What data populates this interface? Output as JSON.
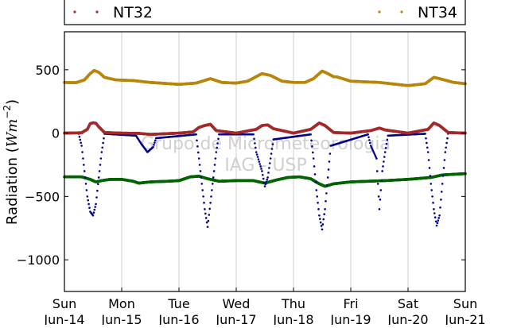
{
  "chart_data": {
    "type": "scatter",
    "title": "",
    "xlabel": "",
    "ylabel_text": "Radiation (",
    "ylabel_unit_base": "Wm",
    "ylabel_unit_exp": "−2",
    "ylabel_close": ")",
    "watermark_line1": "Grupo de Micrometeorologia",
    "watermark_line2": "IAG - USP",
    "legend_placement": "top",
    "grid": "vertical",
    "xlim": [
      0,
      7
    ],
    "ylim": [
      -1250,
      800
    ],
    "yticks": [
      500,
      0,
      -500,
      -1000
    ],
    "ytick_labels": [
      "500",
      "0",
      "−500",
      "−1000"
    ],
    "x_ticks": [
      {
        "day": "Sun",
        "date": "Jun-14"
      },
      {
        "day": "Mon",
        "date": "Jun-15"
      },
      {
        "day": "Tue",
        "date": "Jun-16"
      },
      {
        "day": "Wed",
        "date": "Jun-17"
      },
      {
        "day": "Thu",
        "date": "Jun-18"
      },
      {
        "day": "Fri",
        "date": "Jun-19"
      },
      {
        "day": "Sat",
        "date": "Jun-20"
      },
      {
        "day": "Sun",
        "date": "Jun-21"
      }
    ],
    "series": [
      {
        "name": "NT32",
        "color": "#a52a2a",
        "values": [
          [
            0.0,
            0
          ],
          [
            0.3,
            3
          ],
          [
            0.4,
            30
          ],
          [
            0.45,
            75
          ],
          [
            0.5,
            82
          ],
          [
            0.55,
            78
          ],
          [
            0.6,
            50
          ],
          [
            0.7,
            5
          ],
          [
            1.0,
            0
          ],
          [
            1.3,
            -2
          ],
          [
            1.5,
            -10
          ],
          [
            2.0,
            0
          ],
          [
            2.25,
            10
          ],
          [
            2.35,
            45
          ],
          [
            2.45,
            60
          ],
          [
            2.55,
            70
          ],
          [
            2.65,
            20
          ],
          [
            3.0,
            0
          ],
          [
            3.35,
            30
          ],
          [
            3.45,
            60
          ],
          [
            3.55,
            65
          ],
          [
            3.65,
            35
          ],
          [
            4.0,
            0
          ],
          [
            4.3,
            30
          ],
          [
            4.45,
            80
          ],
          [
            4.55,
            60
          ],
          [
            4.7,
            5
          ],
          [
            5.0,
            0
          ],
          [
            5.35,
            20
          ],
          [
            5.5,
            40
          ],
          [
            5.6,
            25
          ],
          [
            6.0,
            0
          ],
          [
            6.35,
            30
          ],
          [
            6.45,
            80
          ],
          [
            6.55,
            60
          ],
          [
            6.7,
            5
          ],
          [
            7.0,
            0
          ]
        ]
      },
      {
        "name": "NT34",
        "color": "#b8860b",
        "values": [
          [
            0.0,
            400
          ],
          [
            0.2,
            398
          ],
          [
            0.35,
            420
          ],
          [
            0.45,
            470
          ],
          [
            0.52,
            495
          ],
          [
            0.6,
            480
          ],
          [
            0.7,
            440
          ],
          [
            0.9,
            420
          ],
          [
            1.2,
            415
          ],
          [
            1.5,
            400
          ],
          [
            2.0,
            385
          ],
          [
            2.3,
            395
          ],
          [
            2.55,
            430
          ],
          [
            2.75,
            400
          ],
          [
            3.0,
            395
          ],
          [
            3.2,
            410
          ],
          [
            3.45,
            470
          ],
          [
            3.6,
            455
          ],
          [
            3.8,
            410
          ],
          [
            4.0,
            400
          ],
          [
            4.2,
            400
          ],
          [
            4.35,
            430
          ],
          [
            4.5,
            490
          ],
          [
            4.6,
            470
          ],
          [
            4.7,
            445
          ],
          [
            4.75,
            445
          ],
          [
            5.0,
            410
          ],
          [
            5.5,
            400
          ],
          [
            6.0,
            375
          ],
          [
            6.3,
            390
          ],
          [
            6.45,
            440
          ],
          [
            6.55,
            430
          ],
          [
            6.8,
            400
          ],
          [
            7.0,
            390
          ]
        ]
      },
      {
        "name": "",
        "color": "#00008b",
        "values": [
          [
            0.25,
            -5
          ],
          [
            0.3,
            -100
          ],
          [
            0.35,
            -300
          ],
          [
            0.4,
            -500
          ],
          [
            0.45,
            -620
          ],
          [
            0.5,
            -650
          ],
          [
            0.55,
            -560
          ],
          [
            0.6,
            -350
          ],
          [
            0.65,
            -150
          ],
          [
            0.7,
            -5
          ],
          [
            1.25,
            -20
          ],
          [
            1.35,
            -90
          ],
          [
            1.45,
            -150
          ],
          [
            1.55,
            -110
          ],
          [
            1.6,
            -40
          ],
          [
            2.3,
            -10
          ],
          [
            2.35,
            -200
          ],
          [
            2.4,
            -400
          ],
          [
            2.45,
            -600
          ],
          [
            2.5,
            -740
          ],
          [
            2.55,
            -550
          ],
          [
            2.6,
            -350
          ],
          [
            2.65,
            -150
          ],
          [
            2.7,
            -10
          ],
          [
            3.3,
            -10
          ],
          [
            3.35,
            -150
          ],
          [
            3.45,
            -300
          ],
          [
            3.5,
            -420
          ],
          [
            3.55,
            -350
          ],
          [
            3.6,
            -200
          ],
          [
            3.65,
            -50
          ],
          [
            4.3,
            -10
          ],
          [
            4.35,
            -200
          ],
          [
            4.4,
            -450
          ],
          [
            4.45,
            -650
          ],
          [
            4.5,
            -760
          ],
          [
            4.55,
            -600
          ],
          [
            4.6,
            -350
          ],
          [
            4.65,
            -100
          ],
          [
            5.3,
            -10
          ],
          [
            5.35,
            -100
          ],
          [
            5.45,
            -200
          ],
          [
            5.5,
            -600
          ],
          [
            5.55,
            -300
          ],
          [
            5.6,
            -150
          ],
          [
            5.65,
            -20
          ],
          [
            6.3,
            -5
          ],
          [
            6.35,
            -150
          ],
          [
            6.4,
            -400
          ],
          [
            6.45,
            -600
          ],
          [
            6.5,
            -730
          ],
          [
            6.55,
            -650
          ],
          [
            6.6,
            -400
          ],
          [
            6.65,
            -150
          ],
          [
            6.7,
            -5
          ]
        ]
      },
      {
        "name": "",
        "color": "#006400",
        "values": [
          [
            0.0,
            -345
          ],
          [
            0.3,
            -345
          ],
          [
            0.45,
            -365
          ],
          [
            0.55,
            -385
          ],
          [
            0.65,
            -375
          ],
          [
            0.8,
            -365
          ],
          [
            1.0,
            -365
          ],
          [
            1.2,
            -380
          ],
          [
            1.3,
            -395
          ],
          [
            1.5,
            -385
          ],
          [
            1.8,
            -380
          ],
          [
            2.0,
            -375
          ],
          [
            2.2,
            -345
          ],
          [
            2.35,
            -340
          ],
          [
            2.5,
            -360
          ],
          [
            2.7,
            -380
          ],
          [
            3.0,
            -375
          ],
          [
            3.3,
            -375
          ],
          [
            3.5,
            -395
          ],
          [
            3.7,
            -370
          ],
          [
            3.9,
            -350
          ],
          [
            4.1,
            -345
          ],
          [
            4.3,
            -360
          ],
          [
            4.45,
            -400
          ],
          [
            4.55,
            -420
          ],
          [
            4.7,
            -400
          ],
          [
            4.8,
            -395
          ],
          [
            5.0,
            -385
          ],
          [
            5.3,
            -380
          ],
          [
            5.6,
            -375
          ],
          [
            6.0,
            -365
          ],
          [
            6.4,
            -350
          ],
          [
            6.6,
            -330
          ],
          [
            6.8,
            -325
          ],
          [
            7.0,
            -320
          ]
        ]
      }
    ]
  }
}
